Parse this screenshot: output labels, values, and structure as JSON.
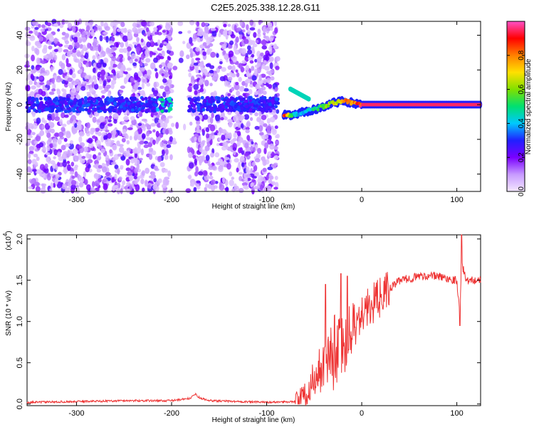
{
  "title": "C2E5.2025.338.12.28.G11",
  "chart_data": [
    {
      "type": "heatmap",
      "xlabel": "Height of straight line (km)",
      "ylabel": "Frequency (Hz)",
      "xlim": [
        -352,
        125
      ],
      "ylim": [
        -50,
        48
      ],
      "x_ticks": [
        -300,
        -200,
        -100,
        0,
        100
      ],
      "y_ticks": [
        -40,
        -20,
        0,
        20,
        40
      ],
      "x_tick_labels": [
        "-300",
        "-200",
        "-100",
        "0",
        "100"
      ],
      "y_tick_labels": [
        "-40",
        "-20",
        "0",
        "20",
        "40"
      ],
      "colorbar": {
        "label": "Normalized spectral amplitude",
        "range": [
          0,
          1
        ],
        "ticks": [
          0.0,
          0.2,
          0.4,
          0.6,
          0.8
        ],
        "tick_labels": [
          "0.0",
          "0.2",
          "0.4",
          "0.6",
          "0.8"
        ],
        "colors": [
          "#f4e8ff",
          "#c79aff",
          "#7a00ff",
          "#2020ff",
          "#00c8ff",
          "#00e070",
          "#80e000",
          "#ffe000",
          "#ff8000",
          "#ff0000",
          "#ff50c8"
        ]
      },
      "regions": [
        {
          "x_range": [
            -352,
            -88
          ],
          "description_values": "noisy scattered",
          "dense_band_freq": 0,
          "band_width_hz": 8
        },
        {
          "x_range": [
            -200,
            -182
          ],
          "gap": true
        },
        {
          "x_range": [
            -88,
            125
          ],
          "tracked_signal": true
        }
      ],
      "track": [
        {
          "x": -82,
          "f": -6,
          "amp": 0.95
        },
        {
          "x": -70,
          "f": -6,
          "amp": 0.45
        },
        {
          "x": -60,
          "f": -4,
          "amp": 0.45
        },
        {
          "x": -45,
          "f": -2,
          "amp": 0.55
        },
        {
          "x": -30,
          "f": 1,
          "amp": 0.7
        },
        {
          "x": -18,
          "f": 2,
          "amp": 0.8
        },
        {
          "x": 0,
          "f": 0,
          "amp": 0.95
        },
        {
          "x": 50,
          "f": 0,
          "amp": 0.95
        },
        {
          "x": 100,
          "f": 0,
          "amp": 0.95
        },
        {
          "x": 125,
          "f": 0,
          "amp": 0.95
        }
      ],
      "secondary_track": [
        {
          "x": -75,
          "f": 9
        },
        {
          "x": -65,
          "f": 6
        },
        {
          "x": -55,
          "f": 3
        }
      ]
    },
    {
      "type": "line",
      "xlabel": "Height of straight line (km)",
      "ylabel": "SNR (10 * v/v)",
      "y_scale_label": "(x10^4)",
      "y_scale_base": "x10",
      "y_scale_exp": "4",
      "xlim": [
        -352,
        125
      ],
      "ylim": [
        -0.02,
        2.05
      ],
      "x_ticks": [
        -300,
        -200,
        -100,
        0,
        100
      ],
      "y_ticks": [
        0.0,
        0.5,
        1.0,
        1.5,
        2.0
      ],
      "x_tick_labels": [
        "-300",
        "-200",
        "-100",
        "0",
        "100"
      ],
      "y_tick_labels": [
        "0.0",
        "0.5",
        "1.0",
        "1.5",
        "2.0"
      ],
      "color": "#ee3333",
      "x": [
        -352,
        -300,
        -250,
        -200,
        -180,
        -175,
        -170,
        -160,
        -100,
        -70,
        -60,
        -50,
        -40,
        -35,
        -30,
        -25,
        -20,
        -15,
        -10,
        -5,
        0,
        10,
        20,
        30,
        40,
        50,
        60,
        70,
        80,
        90,
        100,
        103,
        105,
        110,
        125
      ],
      "values": [
        0.02,
        0.03,
        0.04,
        0.04,
        0.07,
        0.12,
        0.07,
        0.04,
        0.02,
        0.03,
        0.1,
        0.3,
        0.5,
        0.62,
        0.7,
        0.75,
        0.85,
        0.95,
        1.0,
        1.05,
        1.1,
        1.2,
        1.3,
        1.4,
        1.5,
        1.52,
        1.55,
        1.55,
        1.55,
        1.52,
        1.5,
        1.1,
        1.7,
        1.5,
        1.5
      ],
      "spikes": [
        {
          "x": -38,
          "value": 1.45
        },
        {
          "x": -22,
          "value": 1.58
        },
        {
          "x": -15,
          "value": 1.55
        },
        {
          "x": 103,
          "value": 0.95
        },
        {
          "x": 105,
          "value": 2.05
        }
      ]
    }
  ]
}
